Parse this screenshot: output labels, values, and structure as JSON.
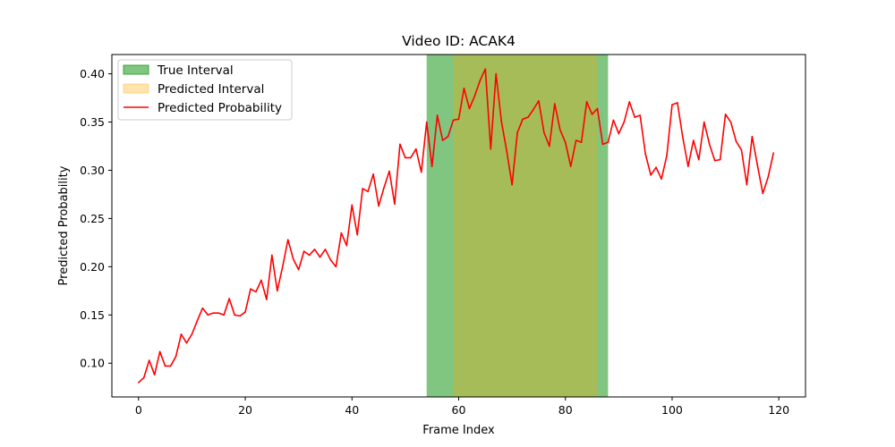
{
  "chart_data": {
    "type": "line",
    "title": "Video ID: ACAK4",
    "xlabel": "Frame Index",
    "ylabel": "Predicted Probability",
    "xlim": [
      -5,
      125
    ],
    "ylim": [
      0.065,
      0.42
    ],
    "xticks": [
      0,
      20,
      40,
      60,
      80,
      100,
      120
    ],
    "yticks": [
      0.1,
      0.15,
      0.2,
      0.25,
      0.3,
      0.35,
      0.4
    ],
    "xtick_labels": [
      "0",
      "20",
      "40",
      "60",
      "80",
      "100",
      "120"
    ],
    "ytick_labels": [
      "0.10",
      "0.15",
      "0.20",
      "0.25",
      "0.30",
      "0.35",
      "0.40"
    ],
    "grid": false,
    "legend_position": "upper left",
    "true_interval": {
      "label": "True Interval",
      "start": 54,
      "end": 88,
      "color": "#2ca02c",
      "alpha": 0.6
    },
    "predicted_interval": {
      "label": "Predicted Interval",
      "start": 59,
      "end": 86,
      "color": "#ffa500",
      "alpha": 0.3
    },
    "series": [
      {
        "name": "Predicted Probability",
        "color": "#ff0000",
        "x": [
          0,
          1,
          2,
          3,
          4,
          5,
          6,
          7,
          8,
          9,
          10,
          11,
          12,
          13,
          14,
          15,
          16,
          17,
          18,
          19,
          20,
          21,
          22,
          23,
          24,
          25,
          26,
          27,
          28,
          29,
          30,
          31,
          32,
          33,
          34,
          35,
          36,
          37,
          38,
          39,
          40,
          41,
          42,
          43,
          44,
          45,
          46,
          47,
          48,
          49,
          50,
          51,
          52,
          53,
          54,
          55,
          56,
          57,
          58,
          59,
          60,
          61,
          62,
          63,
          64,
          65,
          66,
          67,
          68,
          69,
          70,
          71,
          72,
          73,
          74,
          75,
          76,
          77,
          78,
          79,
          80,
          81,
          82,
          83,
          84,
          85,
          86,
          87,
          88,
          89,
          90,
          91,
          92,
          93,
          94,
          95,
          96,
          97,
          98,
          99,
          100,
          101,
          102,
          103,
          104,
          105,
          106,
          107,
          108,
          109,
          110,
          111,
          112,
          113,
          114,
          115,
          116,
          117,
          118,
          119
        ],
        "y": [
          0.08,
          0.085,
          0.103,
          0.088,
          0.112,
          0.097,
          0.097,
          0.107,
          0.13,
          0.121,
          0.13,
          0.144,
          0.157,
          0.15,
          0.152,
          0.152,
          0.15,
          0.167,
          0.15,
          0.149,
          0.153,
          0.177,
          0.174,
          0.186,
          0.166,
          0.212,
          0.175,
          0.2,
          0.228,
          0.208,
          0.197,
          0.216,
          0.212,
          0.218,
          0.21,
          0.218,
          0.207,
          0.2,
          0.235,
          0.222,
          0.264,
          0.233,
          0.281,
          0.278,
          0.296,
          0.263,
          0.282,
          0.299,
          0.265,
          0.327,
          0.313,
          0.313,
          0.322,
          0.298,
          0.35,
          0.304,
          0.357,
          0.331,
          0.335,
          0.352,
          0.353,
          0.385,
          0.364,
          0.377,
          0.393,
          0.405,
          0.322,
          0.4,
          0.351,
          0.32,
          0.285,
          0.339,
          0.353,
          0.355,
          0.363,
          0.372,
          0.339,
          0.325,
          0.369,
          0.342,
          0.329,
          0.304,
          0.331,
          0.329,
          0.371,
          0.358,
          0.364,
          0.327,
          0.329,
          0.352,
          0.338,
          0.35,
          0.371,
          0.355,
          0.357,
          0.317,
          0.295,
          0.303,
          0.291,
          0.315,
          0.368,
          0.37,
          0.334,
          0.304,
          0.331,
          0.311,
          0.35,
          0.327,
          0.31,
          0.311,
          0.358,
          0.35,
          0.33,
          0.321,
          0.285,
          0.335,
          0.305,
          0.276,
          0.293,
          0.318
        ]
      }
    ]
  }
}
